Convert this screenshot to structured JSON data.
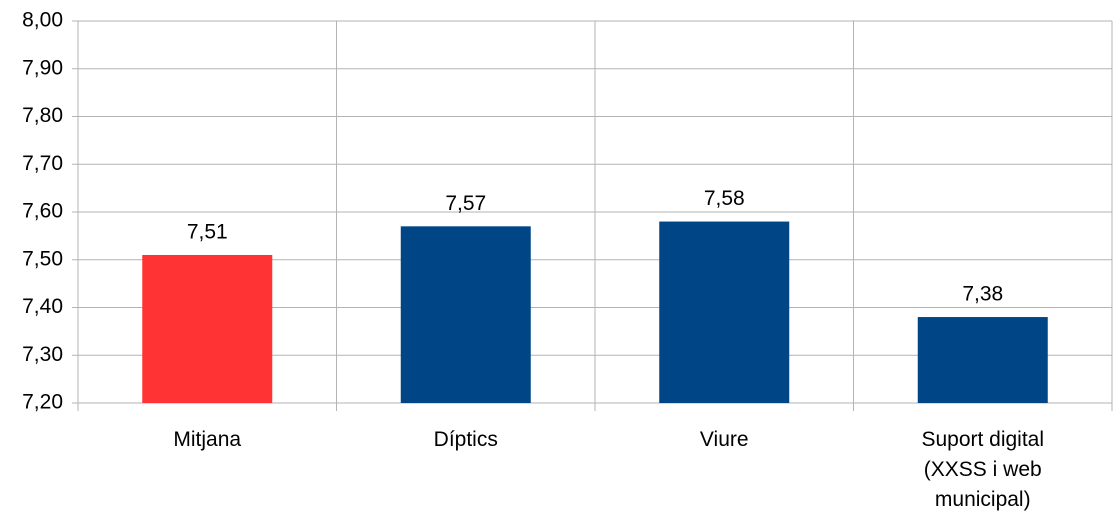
{
  "chart_data": {
    "type": "bar",
    "categories": [
      "Mitjana",
      "Díptics",
      "Viure",
      "Suport digital (XXSS i web municipal)"
    ],
    "values": [
      7.51,
      7.57,
      7.58,
      7.38
    ],
    "value_labels": [
      "7,51",
      "7,57",
      "7,58",
      "7,38"
    ],
    "colors": [
      "#ff3333",
      "#004586",
      "#004586",
      "#004586"
    ],
    "ylim": [
      7.2,
      8.0
    ],
    "yticks": [
      {
        "value": 7.2,
        "label": "7,20"
      },
      {
        "value": 7.3,
        "label": "7,30"
      },
      {
        "value": 7.4,
        "label": "7,40"
      },
      {
        "value": 7.5,
        "label": "7,50"
      },
      {
        "value": 7.6,
        "label": "7,60"
      },
      {
        "value": 7.7,
        "label": "7,70"
      },
      {
        "value": 7.8,
        "label": "7,80"
      },
      {
        "value": 7.9,
        "label": "7,90"
      },
      {
        "value": 8.0,
        "label": "8,00"
      }
    ],
    "grid": true
  }
}
